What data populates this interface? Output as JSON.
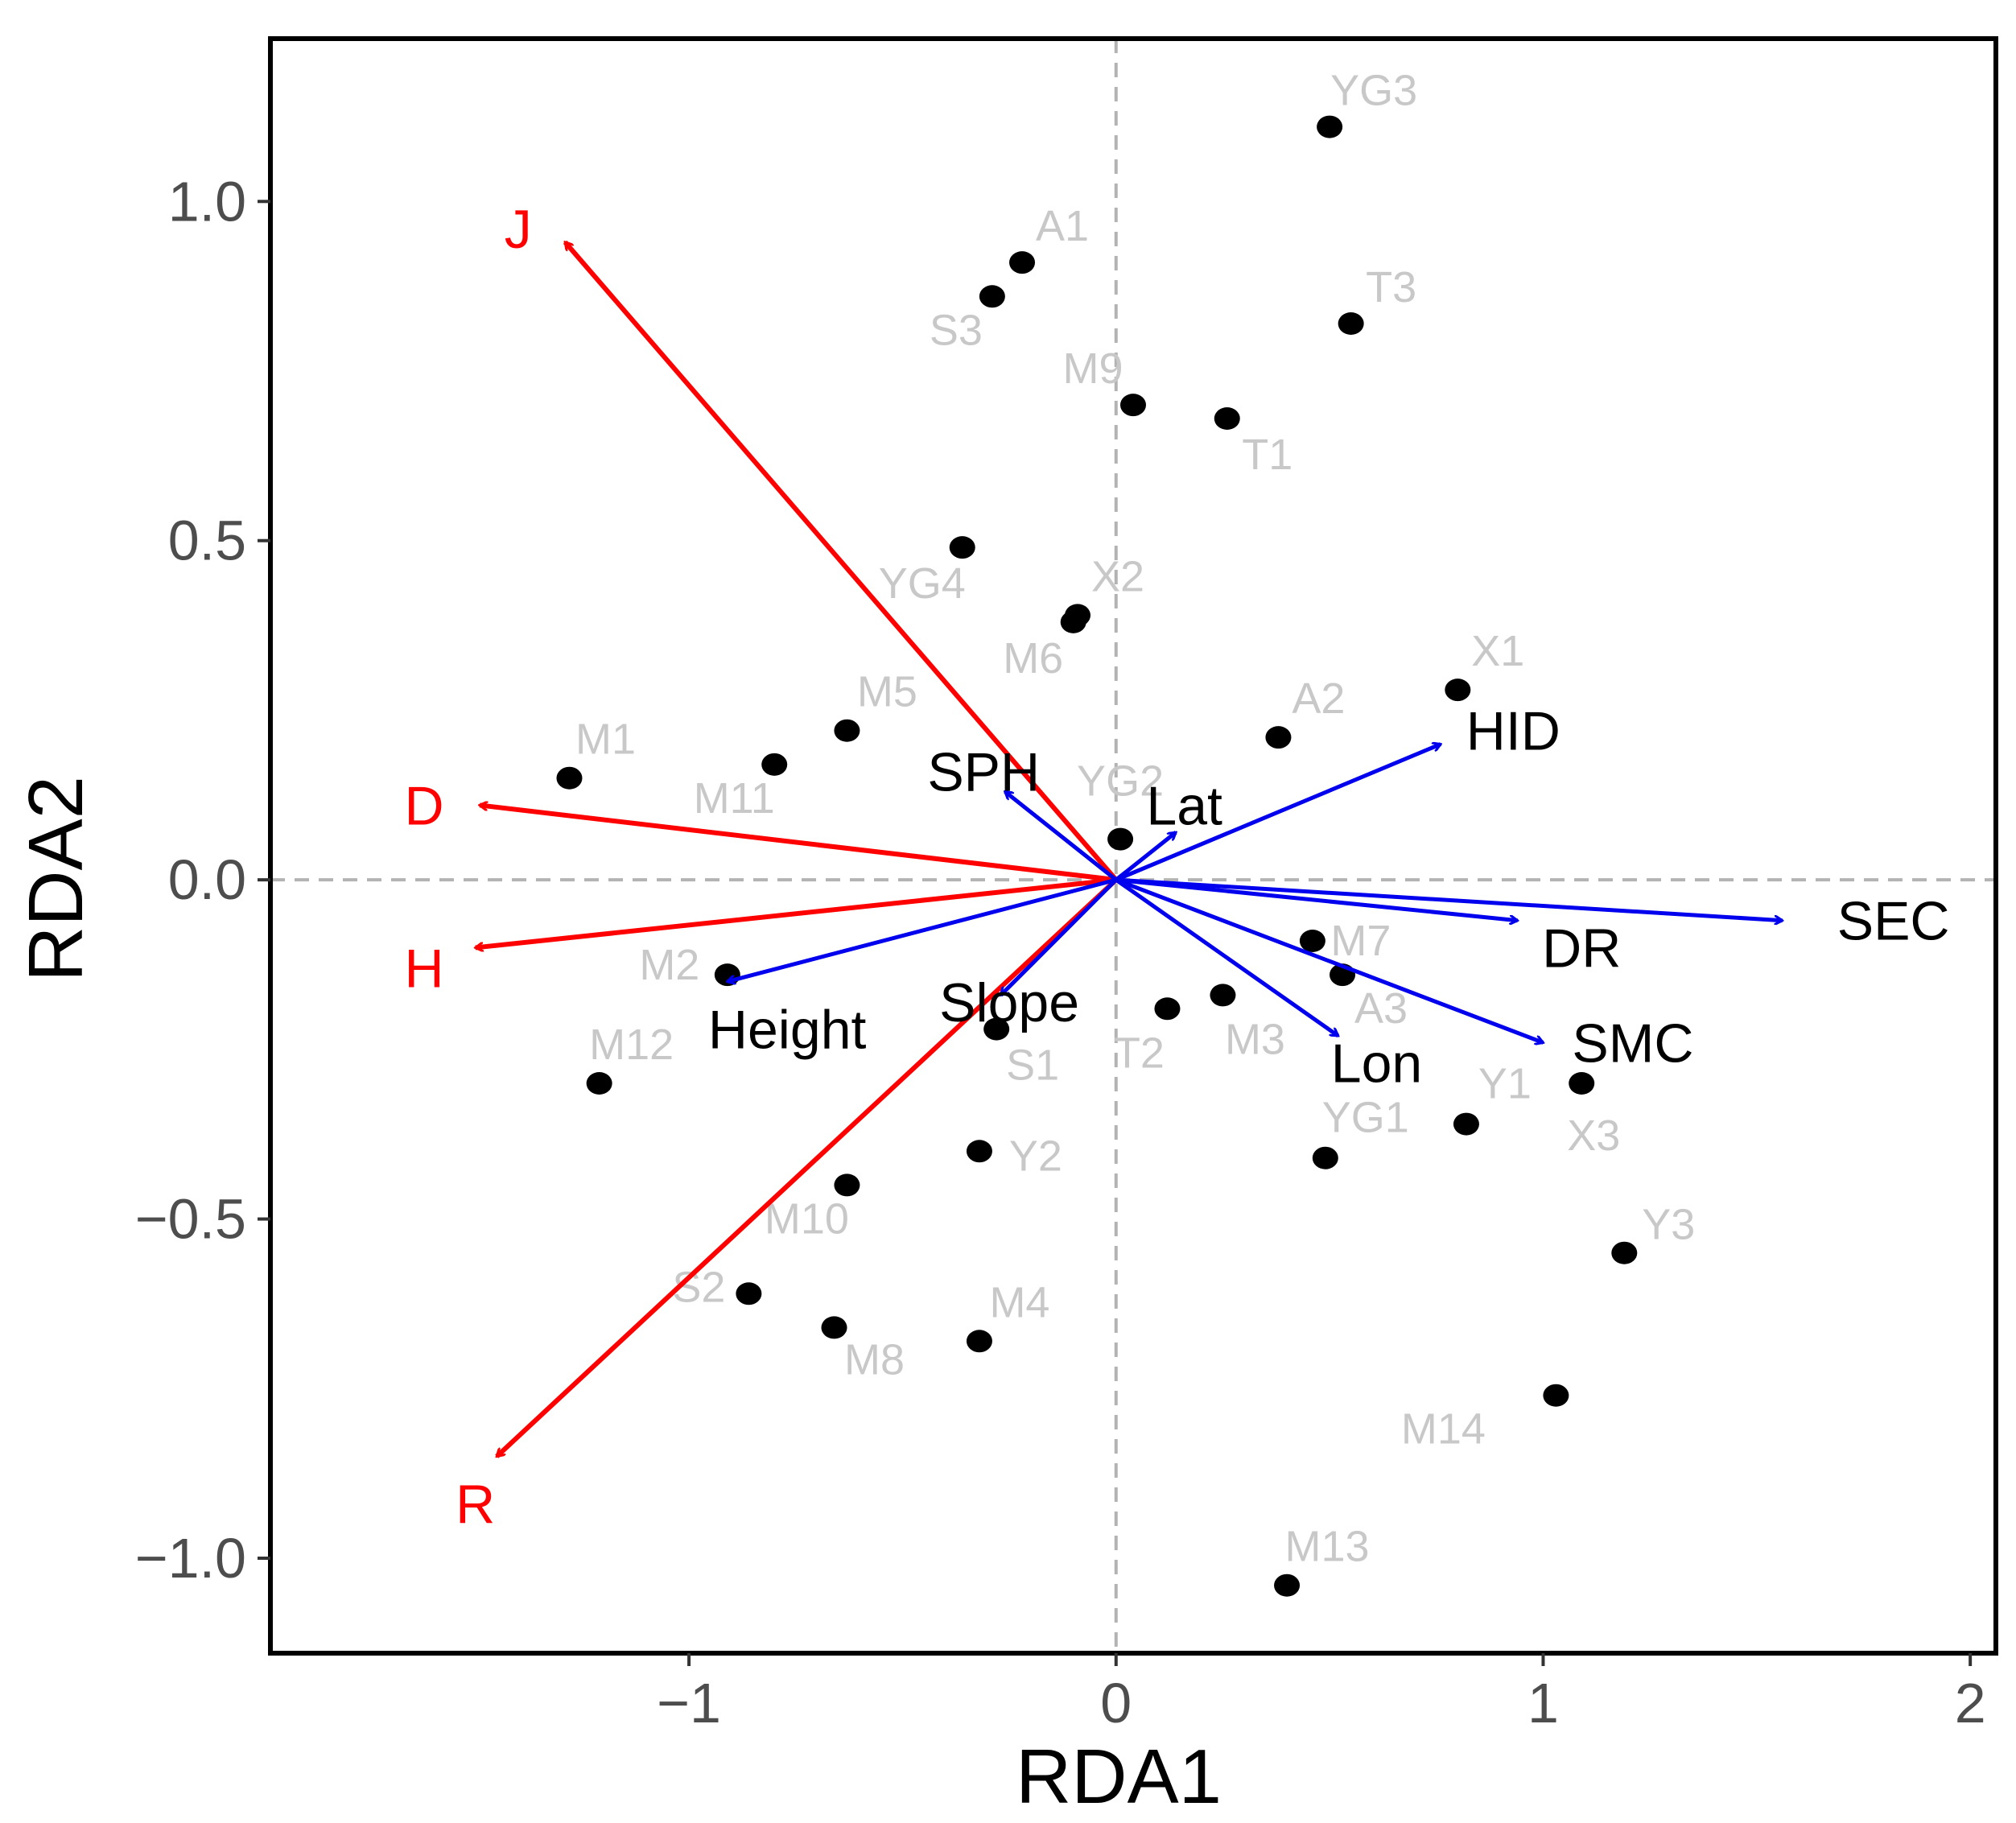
{
  "chart_data": {
    "type": "scatter",
    "title": "",
    "xlabel": "RDA1",
    "ylabel": "RDA2",
    "xlim": [
      -1.98,
      2.06
    ],
    "ylim": [
      -1.14,
      1.24
    ],
    "x_ticks": [
      {
        "value": -1,
        "label": "−1"
      },
      {
        "value": 0,
        "label": "0"
      },
      {
        "value": 1,
        "label": "1"
      },
      {
        "value": 2,
        "label": "2"
      }
    ],
    "y_ticks": [
      {
        "value": -1.0,
        "label": "−1.0"
      },
      {
        "value": -0.5,
        "label": "−0.5"
      },
      {
        "value": 0.0,
        "label": "0.0"
      },
      {
        "value": 0.5,
        "label": "0.5"
      },
      {
        "value": 1.0,
        "label": "1.0"
      }
    ],
    "reference_lines": {
      "x": 0,
      "y": 0,
      "style": "dashed",
      "color": "#b3b3b3"
    },
    "grid": false,
    "colors": {
      "sites": "#000000",
      "site_labels": "#c8c8c8",
      "response_arrows": "#ff0000",
      "explanatory_arrows": "#0000ee",
      "frame": "#000000"
    },
    "sites": [
      {
        "name": "YG3",
        "x": 0.5,
        "y": 1.11
      },
      {
        "name": "A1",
        "x": -0.22,
        "y": 0.91
      },
      {
        "name": "S3",
        "x": -0.29,
        "y": 0.86
      },
      {
        "name": "T3",
        "x": 0.55,
        "y": 0.82
      },
      {
        "name": "M9",
        "x": 0.04,
        "y": 0.7
      },
      {
        "name": "T1",
        "x": 0.26,
        "y": 0.68
      },
      {
        "name": "YG4",
        "x": -0.36,
        "y": 0.49
      },
      {
        "name": "X2",
        "x": -0.09,
        "y": 0.39
      },
      {
        "name": "M6",
        "x": -0.1,
        "y": 0.38
      },
      {
        "name": "X1",
        "x": 0.8,
        "y": 0.28
      },
      {
        "name": "A2",
        "x": 0.38,
        "y": 0.21
      },
      {
        "name": "M5",
        "x": -0.63,
        "y": 0.22
      },
      {
        "name": "M11",
        "x": -0.8,
        "y": 0.17
      },
      {
        "name": "M1",
        "x": -1.28,
        "y": 0.15
      },
      {
        "name": "YG2",
        "x": 0.01,
        "y": 0.06
      },
      {
        "name": "M7",
        "x": 0.46,
        "y": -0.09
      },
      {
        "name": "A3",
        "x": 0.53,
        "y": -0.14
      },
      {
        "name": "M3",
        "x": 0.25,
        "y": -0.17
      },
      {
        "name": "T2",
        "x": 0.12,
        "y": -0.19
      },
      {
        "name": "M2",
        "x": -0.91,
        "y": -0.14
      },
      {
        "name": "S1",
        "x": -0.28,
        "y": -0.22
      },
      {
        "name": "M12",
        "x": -1.21,
        "y": -0.3
      },
      {
        "name": "Y1",
        "x": 0.82,
        "y": -0.36
      },
      {
        "name": "X3",
        "x": 1.09,
        "y": -0.3
      },
      {
        "name": "YG1",
        "x": 0.49,
        "y": -0.41
      },
      {
        "name": "Y2",
        "x": -0.32,
        "y": -0.4
      },
      {
        "name": "M10",
        "x": -0.63,
        "y": -0.45
      },
      {
        "name": "Y3",
        "x": 1.19,
        "y": -0.55
      },
      {
        "name": "S2",
        "x": -0.86,
        "y": -0.61
      },
      {
        "name": "M8",
        "x": -0.66,
        "y": -0.66
      },
      {
        "name": "M4",
        "x": -0.32,
        "y": -0.68
      },
      {
        "name": "M14",
        "x": 1.03,
        "y": -0.76
      },
      {
        "name": "M13",
        "x": 0.4,
        "y": -1.04
      }
    ],
    "response_vectors": [
      {
        "name": "J",
        "x": -1.29,
        "y": 0.94
      },
      {
        "name": "D",
        "x": -1.49,
        "y": 0.11
      },
      {
        "name": "H",
        "x": -1.5,
        "y": -0.1
      },
      {
        "name": "R",
        "x": -1.45,
        "y": -0.85
      }
    ],
    "explanatory_vectors": [
      {
        "name": "SEC",
        "x": 1.56,
        "y": -0.06
      },
      {
        "name": "DR",
        "x": 0.94,
        "y": -0.06
      },
      {
        "name": "SMC",
        "x": 1.0,
        "y": -0.24
      },
      {
        "name": "HID",
        "x": 0.76,
        "y": 0.2
      },
      {
        "name": "Lon",
        "x": 0.52,
        "y": -0.23
      },
      {
        "name": "Lat",
        "x": 0.14,
        "y": 0.07
      },
      {
        "name": "SPH",
        "x": -0.26,
        "y": 0.13
      },
      {
        "name": "Slope",
        "x": -0.27,
        "y": -0.17
      },
      {
        "name": "Height",
        "x": -0.91,
        "y": -0.15
      }
    ]
  }
}
